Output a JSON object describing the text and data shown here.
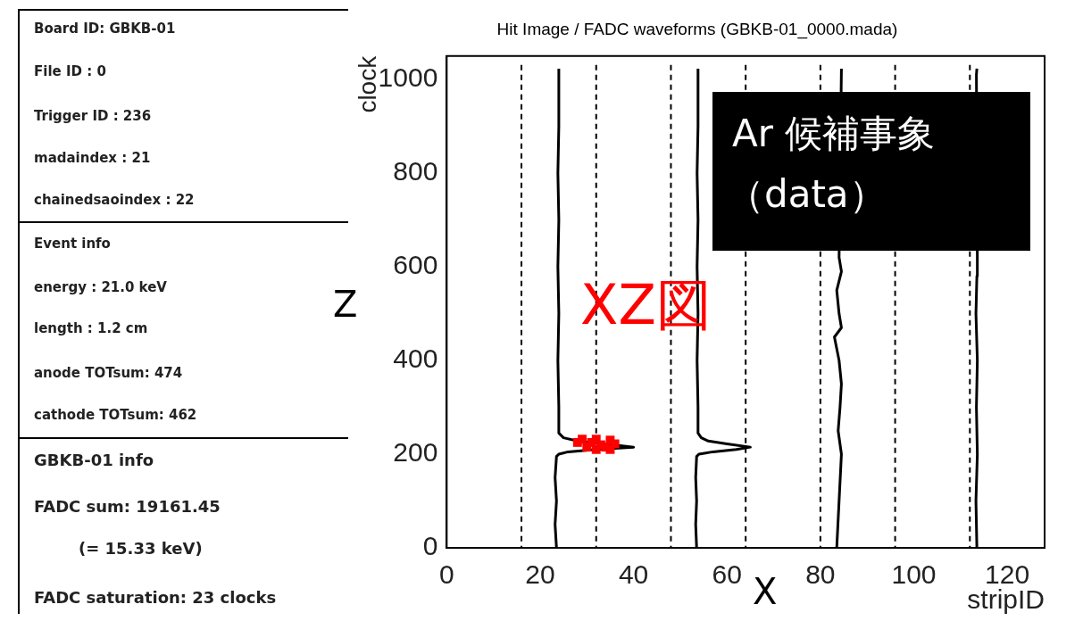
{
  "chart_data": {
    "type": "line",
    "title": "Hit Image / FADC waveforms (GBKB-01_0000.mada)",
    "xlabel": "stripID",
    "ylabel": "clock",
    "xlim": [
      0,
      128
    ],
    "xticks": [
      0,
      20,
      40,
      60,
      80,
      100,
      120
    ],
    "ylim": [
      0,
      1050
    ],
    "yticks": [
      0,
      200,
      400,
      600,
      800,
      1000
    ],
    "grid": false,
    "legend": false,
    "series": [
      {
        "color": "#000000",
        "x": [
          23.5,
          23.2,
          23.5,
          23.2,
          23.5,
          24,
          26,
          32,
          40,
          34,
          28,
          25,
          24,
          24,
          23.8,
          24,
          23.8,
          24,
          23.8,
          24,
          24
        ],
        "values": [
          0,
          50,
          100,
          150,
          195,
          200,
          205,
          210,
          215,
          222,
          228,
          235,
          245,
          300,
          400,
          500,
          600,
          700,
          800,
          900,
          1023
        ]
      },
      {
        "color": "#000000",
        "x": [
          53.5,
          53.3,
          53.5,
          53.3,
          53.5,
          54,
          57,
          62,
          65,
          60,
          56,
          54.5,
          53.8,
          53.8,
          53.6,
          53.8,
          53.6,
          53.8,
          53.6,
          53.8,
          53.8
        ],
        "values": [
          0,
          50,
          100,
          150,
          195,
          200,
          205,
          210,
          215,
          222,
          228,
          235,
          245,
          300,
          400,
          500,
          600,
          700,
          800,
          900,
          1023
        ]
      },
      {
        "color": "#000000",
        "x": [
          83.5,
          84,
          84.5,
          83.8,
          84.2,
          84.5,
          84,
          83,
          84.5,
          84,
          83.5,
          84.5,
          84,
          84.5
        ],
        "values": [
          0,
          100,
          200,
          250,
          300,
          350,
          400,
          450,
          470,
          500,
          550,
          590,
          620,
          1023
        ]
      },
      {
        "color": "#000000",
        "x": [
          113.5,
          113.3,
          113.6,
          113.4,
          113.6,
          113.3,
          113.5,
          113.6,
          113.4,
          113.5
        ],
        "values": [
          0,
          100,
          200,
          300,
          400,
          500,
          580,
          620,
          1010,
          1023
        ]
      },
      {
        "type": "scatter",
        "color": "#ff0000",
        "marker": "square",
        "x": [
          28,
          29,
          30,
          31,
          32,
          32,
          33,
          34,
          35,
          35,
          36
        ],
        "values": [
          225,
          232,
          215,
          225,
          210,
          232,
          220,
          215,
          230,
          210,
          222
        ]
      }
    ],
    "ref_lines": [
      {
        "axis": "x",
        "value": 16,
        "color": "#000000",
        "line_style": "dashed"
      },
      {
        "axis": "x",
        "value": 32,
        "color": "#000000",
        "line_style": "dashed"
      },
      {
        "axis": "x",
        "value": 48,
        "color": "#000000",
        "line_style": "dashed"
      },
      {
        "axis": "x",
        "value": 64,
        "color": "#000000",
        "line_style": "dashed"
      },
      {
        "axis": "x",
        "value": 80,
        "color": "#000000",
        "line_style": "dashed"
      },
      {
        "axis": "x",
        "value": 96,
        "color": "#000000",
        "line_style": "dashed"
      },
      {
        "axis": "x",
        "value": 112,
        "color": "#000000",
        "line_style": "dashed"
      }
    ],
    "annotations": [
      "Board ID: GBKB-01",
      "File ID : 0",
      "Trigger ID : 236",
      "madaindex : 21",
      "chainedsaoindex : 22",
      "Event info",
      "energy : 21.0 keV",
      "length : 1.2 cm",
      "anode TOTsum: 474",
      "cathode TOTsum: 462",
      "GBKB-01 info",
      "FADC sum: 19161.45",
      "(= 15.33 keV)",
      "FADC saturation: 23 clocks",
      "XZ図",
      "Ar 候補事象",
      "（data）",
      "Z",
      "X"
    ]
  }
}
